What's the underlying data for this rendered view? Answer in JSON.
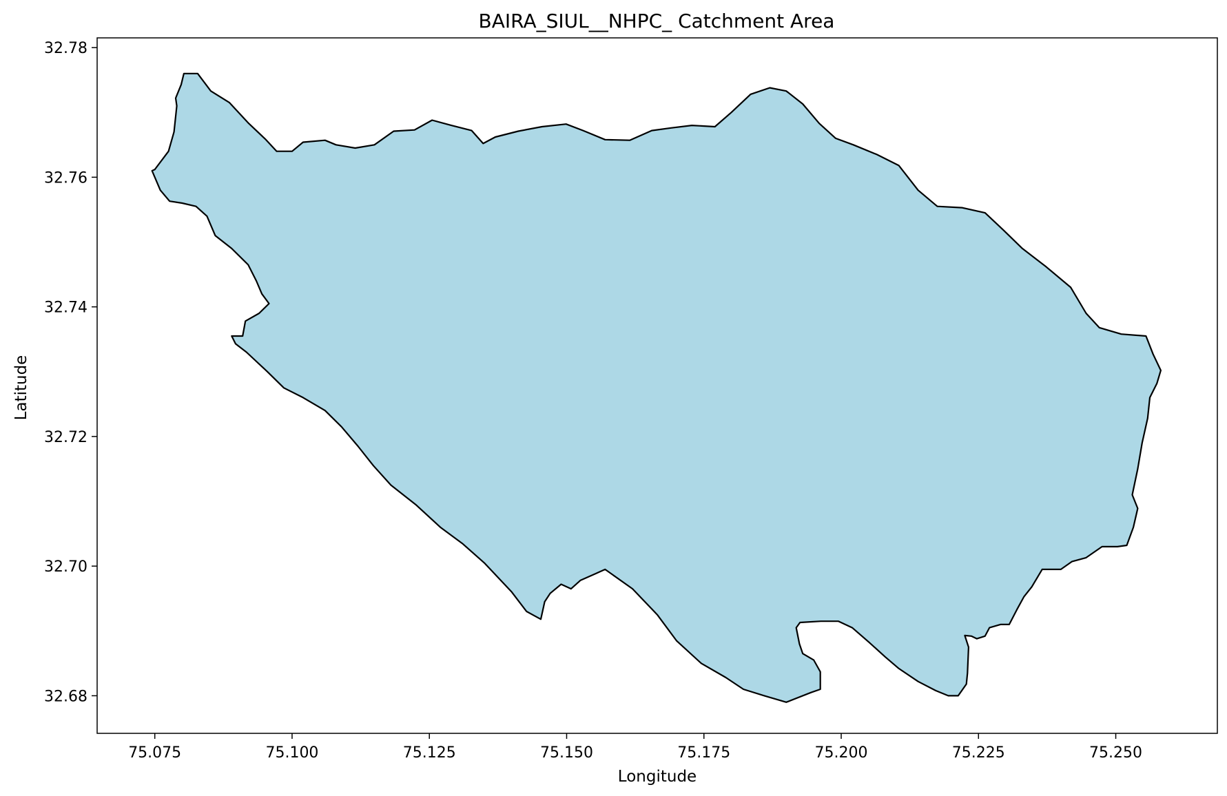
{
  "chart_data": {
    "type": "map",
    "title": "BAIRA_SIUL__NHPC_ Catchment Area",
    "xlabel": "Longitude",
    "ylabel": "Latitude",
    "xlim": [
      75.0645,
      75.2685
    ],
    "ylim": [
      32.6742,
      32.7815
    ],
    "x_ticks": [
      75.075,
      75.1,
      75.125,
      75.15,
      75.175,
      75.2,
      75.225,
      75.25
    ],
    "x_tick_labels": [
      "75.075",
      "75.100",
      "75.125",
      "75.150",
      "75.175",
      "75.200",
      "75.225",
      "75.250"
    ],
    "y_ticks": [
      32.68,
      32.7,
      32.72,
      32.74,
      32.76,
      32.78
    ],
    "y_tick_labels": [
      "32.68",
      "32.70",
      "32.72",
      "32.74",
      "32.76",
      "32.78"
    ],
    "grid": false,
    "fill_color": "#add8e6",
    "edge_color": "#000000",
    "polygon_name": "catchment",
    "polygon": [
      [
        75.0803,
        32.776
      ],
      [
        75.0828,
        32.776
      ],
      [
        75.0852,
        32.7733
      ],
      [
        75.0886,
        32.7715
      ],
      [
        75.0921,
        32.7683
      ],
      [
        75.0951,
        32.7659
      ],
      [
        75.0972,
        32.764
      ],
      [
        75.1,
        32.764
      ],
      [
        75.102,
        32.7654
      ],
      [
        75.106,
        32.7657
      ],
      [
        75.108,
        32.765
      ],
      [
        75.1115,
        32.7645
      ],
      [
        75.115,
        32.765
      ],
      [
        75.1185,
        32.7671
      ],
      [
        75.1223,
        32.7673
      ],
      [
        75.1255,
        32.7688
      ],
      [
        75.129,
        32.768
      ],
      [
        75.1327,
        32.7672
      ],
      [
        75.1348,
        32.7652
      ],
      [
        75.137,
        32.7662
      ],
      [
        75.1412,
        32.7671
      ],
      [
        75.1455,
        32.7678
      ],
      [
        75.1499,
        32.7682
      ],
      [
        75.153,
        32.7672
      ],
      [
        75.157,
        32.7658
      ],
      [
        75.1615,
        32.7657
      ],
      [
        75.1655,
        32.7672
      ],
      [
        75.169,
        32.7676
      ],
      [
        75.1728,
        32.768
      ],
      [
        75.177,
        32.7678
      ],
      [
        75.18,
        32.77
      ],
      [
        75.1835,
        32.7728
      ],
      [
        75.187,
        32.7738
      ],
      [
        75.19,
        32.7733
      ],
      [
        75.193,
        32.7713
      ],
      [
        75.196,
        32.7683
      ],
      [
        75.199,
        32.766
      ],
      [
        75.2022,
        32.765
      ],
      [
        75.2065,
        32.7635
      ],
      [
        75.2105,
        32.7618
      ],
      [
        75.214,
        32.758
      ],
      [
        75.2175,
        32.7555
      ],
      [
        75.222,
        32.7553
      ],
      [
        75.2262,
        32.7545
      ],
      [
        75.2296,
        32.7518
      ],
      [
        75.233,
        32.749
      ],
      [
        75.2373,
        32.7462
      ],
      [
        75.2418,
        32.743
      ],
      [
        75.2446,
        32.739
      ],
      [
        75.247,
        32.7368
      ],
      [
        75.251,
        32.7358
      ],
      [
        75.2555,
        32.7355
      ],
      [
        75.2568,
        32.7327
      ],
      [
        75.2582,
        32.7302
      ],
      [
        75.2575,
        32.7282
      ],
      [
        75.2562,
        32.726
      ],
      [
        75.2558,
        32.7228
      ],
      [
        75.2548,
        32.719
      ],
      [
        75.254,
        32.715
      ],
      [
        75.253,
        32.711
      ],
      [
        75.254,
        32.7089
      ],
      [
        75.2532,
        32.706
      ],
      [
        75.252,
        32.7032
      ],
      [
        75.2503,
        32.703
      ],
      [
        75.2475,
        32.703
      ],
      [
        75.2446,
        32.7013
      ],
      [
        75.242,
        32.7007
      ],
      [
        75.24,
        32.6995
      ],
      [
        75.2366,
        32.6995
      ],
      [
        75.2347,
        32.6968
      ],
      [
        75.2333,
        32.6953
      ],
      [
        75.232,
        32.6933
      ],
      [
        75.2306,
        32.691
      ],
      [
        75.229,
        32.691
      ],
      [
        75.227,
        32.6905
      ],
      [
        75.2262,
        32.6892
      ],
      [
        75.2247,
        32.6888
      ],
      [
        75.2237,
        32.6892
      ],
      [
        75.2225,
        32.6893
      ],
      [
        75.2232,
        32.6875
      ],
      [
        75.223,
        32.6835
      ],
      [
        75.2228,
        32.6818
      ],
      [
        75.2213,
        32.68
      ],
      [
        75.2195,
        32.68
      ],
      [
        75.2172,
        32.6808
      ],
      [
        75.214,
        32.6822
      ],
      [
        75.2105,
        32.6842
      ],
      [
        75.208,
        32.686
      ],
      [
        75.205,
        32.6883
      ],
      [
        75.202,
        32.6905
      ],
      [
        75.1995,
        32.6915
      ],
      [
        75.1963,
        32.6915
      ],
      [
        75.1925,
        32.6913
      ],
      [
        75.1918,
        32.6905
      ],
      [
        75.1924,
        32.688
      ],
      [
        75.193,
        32.6865
      ],
      [
        75.195,
        32.6855
      ],
      [
        75.1962,
        32.6837
      ],
      [
        75.1962,
        32.681
      ],
      [
        75.1945,
        32.6805
      ],
      [
        75.19,
        32.679
      ],
      [
        75.186,
        32.68
      ],
      [
        75.1822,
        32.681
      ],
      [
        75.179,
        32.6828
      ],
      [
        75.1745,
        32.685
      ],
      [
        75.17,
        32.6885
      ],
      [
        75.1665,
        32.6925
      ],
      [
        75.162,
        32.6965
      ],
      [
        75.157,
        32.6995
      ],
      [
        75.1552,
        32.6988
      ],
      [
        75.1525,
        32.6978
      ],
      [
        75.1508,
        32.6965
      ],
      [
        75.149,
        32.6972
      ],
      [
        75.147,
        32.6958
      ],
      [
        75.146,
        32.6945
      ],
      [
        75.1453,
        32.6918
      ],
      [
        75.1427,
        32.693
      ],
      [
        75.14,
        32.696
      ],
      [
        75.135,
        32.7005
      ],
      [
        75.131,
        32.7035
      ],
      [
        75.127,
        32.706
      ],
      [
        75.1225,
        32.7095
      ],
      [
        75.118,
        32.7125
      ],
      [
        75.1148,
        32.7155
      ],
      [
        75.112,
        32.7185
      ],
      [
        75.109,
        32.7215
      ],
      [
        75.106,
        32.724
      ],
      [
        75.102,
        32.726
      ],
      [
        75.0985,
        32.7275
      ],
      [
        75.0955,
        32.73
      ],
      [
        75.0917,
        32.733
      ],
      [
        75.0897,
        32.7343
      ],
      [
        75.089,
        32.7355
      ],
      [
        75.091,
        32.7355
      ],
      [
        75.0915,
        32.7378
      ],
      [
        75.094,
        32.739
      ],
      [
        75.0958,
        32.7405
      ],
      [
        75.0945,
        32.742
      ],
      [
        75.0935,
        32.744
      ],
      [
        75.092,
        32.7465
      ],
      [
        75.089,
        32.749
      ],
      [
        75.086,
        32.751
      ],
      [
        75.0845,
        32.754
      ],
      [
        75.0825,
        32.7555
      ],
      [
        75.08,
        32.756
      ],
      [
        75.0777,
        32.7563
      ],
      [
        75.076,
        32.758
      ],
      [
        75.0745,
        32.761
      ],
      [
        75.075,
        32.7612
      ],
      [
        75.0775,
        32.764
      ],
      [
        75.0785,
        32.767
      ],
      [
        75.079,
        32.771
      ],
      [
        75.0788,
        32.7722
      ],
      [
        75.0798,
        32.7743
      ],
      [
        75.0803,
        32.776
      ]
    ]
  }
}
